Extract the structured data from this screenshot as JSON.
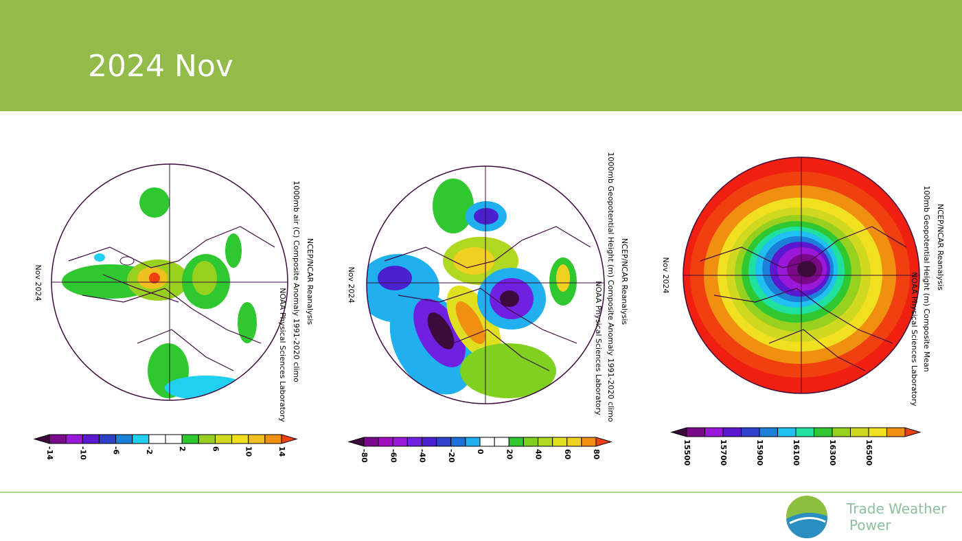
{
  "header": {
    "title": "2024 Nov"
  },
  "panels": [
    {
      "date_label": "Nov 2024",
      "title_lines": [
        "NCEP/NCAR Reanalysis",
        "1000mb air (C) Composite Anomaly 1991-2020 climo",
        "NOAA Physical Sciences Laboratory"
      ],
      "colorbar": {
        "ticks": [
          -14,
          -10,
          -6,
          -2,
          2,
          6,
          10,
          14
        ],
        "colors": [
          "#3d0a3d",
          "#7a0a8a",
          "#9a18d8",
          "#5a18d0",
          "#3040c8",
          "#1c80d8",
          "#20d0f0",
          "#ffffff",
          "#ffffff",
          "#30c830",
          "#98d020",
          "#d0d820",
          "#f0e020",
          "#f0c020",
          "#f09010",
          "#f04010"
        ]
      }
    },
    {
      "date_label": "Nov 2024",
      "title_lines": [
        "NCEP/NCAR Reanalysis",
        "1000mb Geopotential Height (m) Composite Anomaly 1991-2020 climo",
        "NOAA Physical Sciences Laboratory"
      ],
      "colorbar": {
        "ticks": [
          -80,
          -60,
          -40,
          -20,
          0,
          20,
          40,
          60,
          80
        ],
        "colors": [
          "#3d0a3d",
          "#7a0a8a",
          "#a010c0",
          "#9a18d8",
          "#7020e0",
          "#4a20d0",
          "#3040c8",
          "#1c70d8",
          "#20b0f0",
          "#ffffff",
          "#ffffff",
          "#30c830",
          "#80d020",
          "#b0d820",
          "#e0e020",
          "#f0d020",
          "#f09010",
          "#f04010"
        ]
      }
    },
    {
      "date_label": "Nov 2024",
      "title_lines": [
        "NCEP/NCAR Reanalysis",
        "100mb Geopotential Height (m) Composite Mean",
        "NOAA Physical Sciences Laboratory"
      ],
      "colorbar": {
        "ticks": [
          15500,
          15700,
          15900,
          16100,
          16300,
          16500
        ],
        "colors": [
          "#3d0a3d",
          "#7a0a8a",
          "#9a18d8",
          "#5a18d0",
          "#3040c8",
          "#1c80d8",
          "#20c0f0",
          "#20e0a0",
          "#30c830",
          "#98d020",
          "#d0d820",
          "#f0e020",
          "#f09010",
          "#f04010"
        ]
      }
    }
  ],
  "footer": {
    "brand_line1": "Trade Weather",
    "brand_line2": "Power"
  }
}
